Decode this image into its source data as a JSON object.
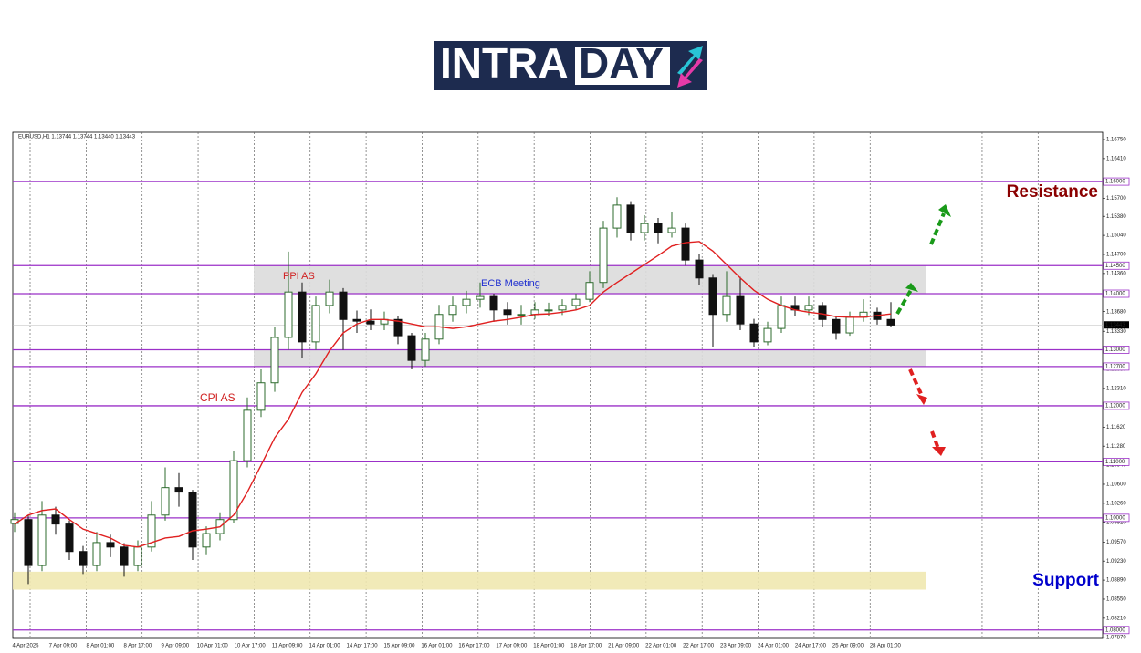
{
  "logo": {
    "left": "INTRA",
    "right": "DAY"
  },
  "chart_data": {
    "type": "candlestick",
    "title": "EURUSD,H1  1.13744 1.13744 1.13440 1.13443",
    "ylim": [
      1.0785,
      1.1688
    ],
    "up_color": "#2e6b2e",
    "down_color": "#111111",
    "yticks": [
      {
        "value": 1.1675,
        "label": "1.16750"
      },
      {
        "value": 1.1641,
        "label": "1.16410"
      },
      {
        "value": 1.157,
        "label": "1.15700"
      },
      {
        "value": 1.1538,
        "label": "1.15380"
      },
      {
        "value": 1.1504,
        "label": "1.15040"
      },
      {
        "value": 1.147,
        "label": "1.14700"
      },
      {
        "value": 1.1436,
        "label": "1.14360"
      },
      {
        "value": 1.1368,
        "label": "1.13680"
      },
      {
        "value": 1.1333,
        "label": "1.13330"
      },
      {
        "value": 1.1265,
        "label": "1.12650"
      },
      {
        "value": 1.1231,
        "label": "1.12310"
      },
      {
        "value": 1.1162,
        "label": "1.11620"
      },
      {
        "value": 1.1128,
        "label": "1.11280"
      },
      {
        "value": 1.1094,
        "label": "1.10940"
      },
      {
        "value": 1.106,
        "label": "1.10600"
      },
      {
        "value": 1.1026,
        "label": "1.10260"
      },
      {
        "value": 1.0992,
        "label": "1.09920"
      },
      {
        "value": 1.0957,
        "label": "1.09570"
      },
      {
        "value": 1.0923,
        "label": "1.09230"
      },
      {
        "value": 1.0889,
        "label": "1.08890"
      },
      {
        "value": 1.0855,
        "label": "1.08550"
      },
      {
        "value": 1.0821,
        "label": "1.08210"
      },
      {
        "value": 1.0787,
        "label": "1.07870"
      }
    ],
    "x_labels": [
      "4 Apr 2025",
      "7 Apr 09:00",
      "8 Apr 01:00",
      "8 Apr 17:00",
      "9 Apr 09:00",
      "10 Apr 01:00",
      "10 Apr 17:00",
      "11 Apr 09:00",
      "14 Apr 01:00",
      "14 Apr 17:00",
      "15 Apr 09:00",
      "16 Apr 01:00",
      "16 Apr 17:00",
      "17 Apr 09:00",
      "18 Apr 01:00",
      "18 Apr 17:00",
      "21 Apr 09:00",
      "22 Apr 01:00",
      "22 Apr 17:00",
      "23 Apr 09:00",
      "24 Apr 01:00",
      "24 Apr 17:00",
      "25 Apr 09:00",
      "28 Apr 01:00"
    ],
    "levels": [
      {
        "value": 1.16,
        "label": "1.16000"
      },
      {
        "value": 1.145,
        "label": "1.14500"
      },
      {
        "value": 1.14,
        "label": "1.14000"
      },
      {
        "value": 1.13,
        "label": "1.13000"
      },
      {
        "value": 1.127,
        "label": "1.12700"
      },
      {
        "value": 1.12,
        "label": "1.12000"
      },
      {
        "value": 1.11,
        "label": "1.11000"
      },
      {
        "value": 1.1,
        "label": "1.10000"
      },
      {
        "value": 1.08,
        "label": "1.08000"
      }
    ],
    "level_color": "#9b30c8",
    "zones": [
      {
        "from": 1.14,
        "to": 1.145,
        "color": "#dcdcdc"
      },
      {
        "from": 1.127,
        "to": 1.13,
        "color": "#dcdcdc"
      },
      {
        "from": 1.0872,
        "to": 1.0904,
        "color": "#efe8b0"
      }
    ],
    "current": {
      "value": 1.13443,
      "label": "1.13443"
    },
    "ma": {
      "color": "#e02020",
      "values": [
        1.0989,
        1.1005,
        1.1013,
        1.1016,
        1.0997,
        1.098,
        1.0972,
        1.0964,
        1.0951,
        1.0948,
        1.0956,
        1.0964,
        1.0967,
        1.0977,
        1.098,
        1.0984,
        1.1005,
        1.1046,
        1.1094,
        1.1143,
        1.1176,
        1.1224,
        1.1257,
        1.1298,
        1.133,
        1.1346,
        1.1354,
        1.1354,
        1.1351,
        1.1346,
        1.1341,
        1.1341,
        1.1338,
        1.1341,
        1.1346,
        1.1351,
        1.1354,
        1.1358,
        1.1363,
        1.1364,
        1.1367,
        1.1371,
        1.1379,
        1.1403,
        1.142,
        1.1436,
        1.1452,
        1.1468,
        1.1485,
        1.1491,
        1.1493,
        1.1476,
        1.1452,
        1.1428,
        1.1406,
        1.139,
        1.1379,
        1.1371,
        1.1367,
        1.1364,
        1.1359,
        1.1358,
        1.1358,
        1.1361,
        1.1364
      ]
    },
    "candles": [
      [
        1.099,
        1.101,
        1.0975,
        1.0997
      ],
      [
        1.0997,
        1.1005,
        1.0882,
        1.0915
      ],
      [
        1.0915,
        1.103,
        1.0905,
        1.1005
      ],
      [
        1.1005,
        1.102,
        1.097,
        1.0989
      ],
      [
        1.0989,
        1.0995,
        1.0925,
        1.094
      ],
      [
        1.094,
        1.095,
        1.09,
        1.0915
      ],
      [
        1.0915,
        1.0975,
        1.0905,
        1.0956
      ],
      [
        1.0956,
        1.097,
        1.093,
        1.0948
      ],
      [
        1.0948,
        1.0955,
        1.0895,
        1.0915
      ],
      [
        1.0915,
        1.096,
        1.0905,
        1.0948
      ],
      [
        1.0948,
        1.103,
        1.094,
        1.1005
      ],
      [
        1.1005,
        1.109,
        1.0995,
        1.1054
      ],
      [
        1.1054,
        1.108,
        1.102,
        1.1046
      ],
      [
        1.1046,
        1.105,
        1.0925,
        1.0948
      ],
      [
        1.0948,
        1.0985,
        1.0935,
        1.0972
      ],
      [
        1.0972,
        1.101,
        1.096,
        1.0997
      ],
      [
        1.0997,
        1.112,
        1.099,
        1.1102
      ],
      [
        1.1102,
        1.1215,
        1.109,
        1.1192
      ],
      [
        1.1192,
        1.1265,
        1.118,
        1.1241
      ],
      [
        1.1241,
        1.134,
        1.1225,
        1.1322
      ],
      [
        1.1322,
        1.1475,
        1.13,
        1.1403
      ],
      [
        1.1403,
        1.142,
        1.1285,
        1.1314
      ],
      [
        1.1314,
        1.1395,
        1.13,
        1.1379
      ],
      [
        1.1379,
        1.1425,
        1.1365,
        1.1403
      ],
      [
        1.1403,
        1.141,
        1.13,
        1.1354
      ],
      [
        1.1354,
        1.137,
        1.133,
        1.1351
      ],
      [
        1.1351,
        1.1372,
        1.1335,
        1.1346
      ],
      [
        1.1346,
        1.1368,
        1.1335,
        1.1354
      ],
      [
        1.1354,
        1.136,
        1.131,
        1.1325
      ],
      [
        1.1325,
        1.133,
        1.1265,
        1.1281
      ],
      [
        1.1281,
        1.133,
        1.127,
        1.1319
      ],
      [
        1.1319,
        1.138,
        1.131,
        1.1363
      ],
      [
        1.1363,
        1.1395,
        1.135,
        1.1379
      ],
      [
        1.1379,
        1.1405,
        1.1365,
        1.139
      ],
      [
        1.139,
        1.142,
        1.1375,
        1.1395
      ],
      [
        1.1395,
        1.14,
        1.135,
        1.1371
      ],
      [
        1.1371,
        1.1385,
        1.1345,
        1.1363
      ],
      [
        1.1363,
        1.138,
        1.1345,
        1.1363
      ],
      [
        1.1363,
        1.1385,
        1.1355,
        1.1371
      ],
      [
        1.1371,
        1.1384,
        1.136,
        1.1371
      ],
      [
        1.1371,
        1.139,
        1.1362,
        1.1379
      ],
      [
        1.1379,
        1.14,
        1.137,
        1.139
      ],
      [
        1.139,
        1.144,
        1.1385,
        1.142
      ],
      [
        1.142,
        1.153,
        1.141,
        1.1517
      ],
      [
        1.1517,
        1.1572,
        1.15,
        1.1558
      ],
      [
        1.1558,
        1.1565,
        1.1495,
        1.1509
      ],
      [
        1.1509,
        1.154,
        1.1495,
        1.1525
      ],
      [
        1.1525,
        1.1535,
        1.149,
        1.1509
      ],
      [
        1.1509,
        1.1545,
        1.15,
        1.1517
      ],
      [
        1.1517,
        1.1525,
        1.145,
        1.146
      ],
      [
        1.146,
        1.147,
        1.1415,
        1.1428
      ],
      [
        1.1428,
        1.1435,
        1.1305,
        1.1363
      ],
      [
        1.1363,
        1.144,
        1.135,
        1.1395
      ],
      [
        1.1395,
        1.143,
        1.1335,
        1.1346
      ],
      [
        1.1346,
        1.1355,
        1.1305,
        1.1314
      ],
      [
        1.1314,
        1.135,
        1.1308,
        1.1338
      ],
      [
        1.1338,
        1.1395,
        1.133,
        1.1379
      ],
      [
        1.1379,
        1.1395,
        1.136,
        1.1371
      ],
      [
        1.1371,
        1.1395,
        1.1362,
        1.1379
      ],
      [
        1.1379,
        1.1385,
        1.134,
        1.1354
      ],
      [
        1.1354,
        1.136,
        1.1318,
        1.133
      ],
      [
        1.133,
        1.1368,
        1.1325,
        1.1358
      ],
      [
        1.1358,
        1.139,
        1.135,
        1.1367
      ],
      [
        1.1367,
        1.1375,
        1.1345,
        1.1354
      ],
      [
        1.1354,
        1.1385,
        1.134,
        1.1344
      ]
    ],
    "annotations": {
      "ppi": "PPI AS",
      "cpi": "CPI AS",
      "ecb": "ECB Meeting",
      "resistance": "Resistance",
      "support": "Support"
    }
  }
}
